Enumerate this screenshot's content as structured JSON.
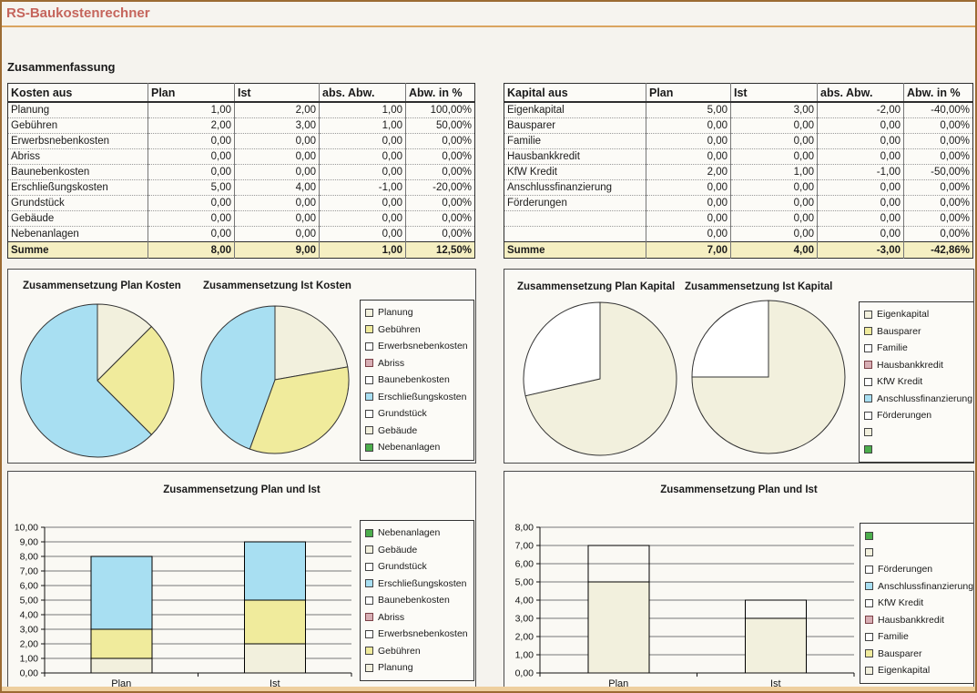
{
  "window": {
    "title": "RS-Baukostenrechner"
  },
  "heading": "Zusammenfassung",
  "colors": {
    "frame": "#9C6B33",
    "app_title": "#C5655C",
    "summe_row_bg": "#F5EFC2",
    "series_cream": "#F2F0DD",
    "series_yellow": "#F0EB9C",
    "series_white": "#FFFFFF",
    "series_rose": "#D8AEB4",
    "series_blue": "#A8DFF2",
    "series_green": "#4CAE4C"
  },
  "tables": [
    {
      "headers": [
        "Kosten aus",
        "Plan",
        "Ist",
        "abs. Abw.",
        "Abw. in %"
      ],
      "rows": [
        [
          "Planung",
          "1,00",
          "2,00",
          "1,00",
          "100,00%"
        ],
        [
          "Gebühren",
          "2,00",
          "3,00",
          "1,00",
          "50,00%"
        ],
        [
          "Erwerbsnebenkosten",
          "0,00",
          "0,00",
          "0,00",
          "0,00%"
        ],
        [
          "Abriss",
          "0,00",
          "0,00",
          "0,00",
          "0,00%"
        ],
        [
          "Baunebenkosten",
          "0,00",
          "0,00",
          "0,00",
          "0,00%"
        ],
        [
          "Erschließungskosten",
          "5,00",
          "4,00",
          "-1,00",
          "-20,00%"
        ],
        [
          "Grundstück",
          "0,00",
          "0,00",
          "0,00",
          "0,00%"
        ],
        [
          "Gebäude",
          "0,00",
          "0,00",
          "0,00",
          "0,00%"
        ],
        [
          "Nebenanlagen",
          "0,00",
          "0,00",
          "0,00",
          "0,00%"
        ]
      ],
      "total": [
        "Summe",
        "8,00",
        "9,00",
        "1,00",
        "12,50%"
      ]
    },
    {
      "headers": [
        "Kapital aus",
        "Plan",
        "Ist",
        "abs. Abw.",
        "Abw. in %"
      ],
      "rows": [
        [
          "Eigenkapital",
          "5,00",
          "3,00",
          "-2,00",
          "-40,00%"
        ],
        [
          "Bausparer",
          "0,00",
          "0,00",
          "0,00",
          "0,00%"
        ],
        [
          "Familie",
          "0,00",
          "0,00",
          "0,00",
          "0,00%"
        ],
        [
          "Hausbankkredit",
          "0,00",
          "0,00",
          "0,00",
          "0,00%"
        ],
        [
          "KfW Kredit",
          "2,00",
          "1,00",
          "-1,00",
          "-50,00%"
        ],
        [
          "Anschlussfinanzierung",
          "0,00",
          "0,00",
          "0,00",
          "0,00%"
        ],
        [
          "Förderungen",
          "0,00",
          "0,00",
          "0,00",
          "0,00%"
        ],
        [
          "",
          "0,00",
          "0,00",
          "0,00",
          "0,00%"
        ],
        [
          "",
          "0,00",
          "0,00",
          "0,00",
          "0,00%"
        ]
      ],
      "total": [
        "Summe",
        "7,00",
        "4,00",
        "-3,00",
        "-42,86%"
      ]
    }
  ],
  "chart_data": [
    {
      "type": "pie",
      "title": "Zusammensetzung Plan Kosten",
      "labels": [
        "Planung",
        "Gebühren",
        "Erwerbsnebenkosten",
        "Abriss",
        "Baunebenkosten",
        "Erschließungskosten",
        "Grundstück",
        "Gebäude",
        "Nebenanlagen"
      ],
      "values": [
        1,
        2,
        0,
        0,
        0,
        5,
        0,
        0,
        0
      ],
      "colors": [
        "#F2F0DD",
        "#F0EB9C",
        "#FFFFFF",
        "#D8AEB4",
        "#FFFFFF",
        "#A8DFF2",
        "#FFFFFF",
        "#F2F0DD",
        "#4CAE4C"
      ]
    },
    {
      "type": "pie",
      "title": "Zusammensetzung Ist Kosten",
      "labels": [
        "Planung",
        "Gebühren",
        "Erwerbsnebenkosten",
        "Abriss",
        "Baunebenkosten",
        "Erschließungskosten",
        "Grundstück",
        "Gebäude",
        "Nebenanlagen"
      ],
      "values": [
        2,
        3,
        0,
        0,
        0,
        4,
        0,
        0,
        0
      ],
      "colors": [
        "#F2F0DD",
        "#F0EB9C",
        "#FFFFFF",
        "#D8AEB4",
        "#FFFFFF",
        "#A8DFF2",
        "#FFFFFF",
        "#F2F0DD",
        "#4CAE4C"
      ]
    },
    {
      "type": "pie",
      "title": "Zusammensetzung Plan Kapital",
      "labels": [
        "Eigenkapital",
        "Bausparer",
        "Familie",
        "Hausbankkredit",
        "KfW Kredit",
        "Anschlussfinanzierung",
        "Förderungen",
        "",
        ""
      ],
      "values": [
        5,
        0,
        0,
        0,
        2,
        0,
        0,
        0,
        0
      ],
      "colors": [
        "#F2F0DD",
        "#F0EB9C",
        "#FFFFFF",
        "#D8AEB4",
        "#FFFFFF",
        "#A8DFF2",
        "#FFFFFF",
        "#F2F0DD",
        "#4CAE4C"
      ]
    },
    {
      "type": "pie",
      "title": "Zusammensetzung Ist Kapital",
      "labels": [
        "Eigenkapital",
        "Bausparer",
        "Familie",
        "Hausbankkredit",
        "KfW Kredit",
        "Anschlussfinanzierung",
        "Förderungen",
        "",
        ""
      ],
      "values": [
        3,
        0,
        0,
        0,
        1,
        0,
        0,
        0,
        0
      ],
      "colors": [
        "#F2F0DD",
        "#F0EB9C",
        "#FFFFFF",
        "#D8AEB4",
        "#FFFFFF",
        "#A8DFF2",
        "#FFFFFF",
        "#F2F0DD",
        "#4CAE4C"
      ]
    },
    {
      "type": "bar",
      "stacked": true,
      "title": "Zusammensetzung Plan und Ist",
      "categories": [
        "Plan",
        "Ist"
      ],
      "ylim": [
        0,
        10
      ],
      "ystep": 1,
      "grid": true,
      "legend_position": "right",
      "series": [
        {
          "name": "Planung",
          "values": [
            1,
            2
          ],
          "color": "#F2F0DD"
        },
        {
          "name": "Gebühren",
          "values": [
            2,
            3
          ],
          "color": "#F0EB9C"
        },
        {
          "name": "Erwerbsnebenkosten",
          "values": [
            0,
            0
          ],
          "color": "#FFFFFF"
        },
        {
          "name": "Abriss",
          "values": [
            0,
            0
          ],
          "color": "#D8AEB4"
        },
        {
          "name": "Baunebenkosten",
          "values": [
            0,
            0
          ],
          "color": "#FFFFFF"
        },
        {
          "name": "Erschließungskosten",
          "values": [
            5,
            4
          ],
          "color": "#A8DFF2"
        },
        {
          "name": "Grundstück",
          "values": [
            0,
            0
          ],
          "color": "#FFFFFF"
        },
        {
          "name": "Gebäude",
          "values": [
            0,
            0
          ],
          "color": "#F2F0DD"
        },
        {
          "name": "Nebenanlagen",
          "values": [
            0,
            0
          ],
          "color": "#4CAE4C"
        }
      ]
    },
    {
      "type": "bar",
      "stacked": true,
      "title": "Zusammensetzung Plan und Ist",
      "categories": [
        "Plan",
        "Ist"
      ],
      "ylim": [
        0,
        8
      ],
      "ystep": 1,
      "grid": true,
      "legend_position": "right",
      "series": [
        {
          "name": "Eigenkapital",
          "values": [
            5,
            3
          ],
          "color": "#F2F0DD"
        },
        {
          "name": "Bausparer",
          "values": [
            0,
            0
          ],
          "color": "#F0EB9C"
        },
        {
          "name": "Familie",
          "values": [
            0,
            0
          ],
          "color": "#FFFFFF"
        },
        {
          "name": "Hausbankkredit",
          "values": [
            0,
            0
          ],
          "color": "#D8AEB4"
        },
        {
          "name": "KfW Kredit",
          "values": [
            2,
            1
          ],
          "color": "#FFFFFF"
        },
        {
          "name": "Anschlussfinanzierung",
          "values": [
            0,
            0
          ],
          "color": "#A8DFF2"
        },
        {
          "name": "Förderungen",
          "values": [
            0,
            0
          ],
          "color": "#FFFFFF"
        },
        {
          "name": "",
          "values": [
            0,
            0
          ],
          "color": "#F2F0DD"
        },
        {
          "name": "",
          "values": [
            0,
            0
          ],
          "color": "#4CAE4C"
        }
      ]
    }
  ]
}
